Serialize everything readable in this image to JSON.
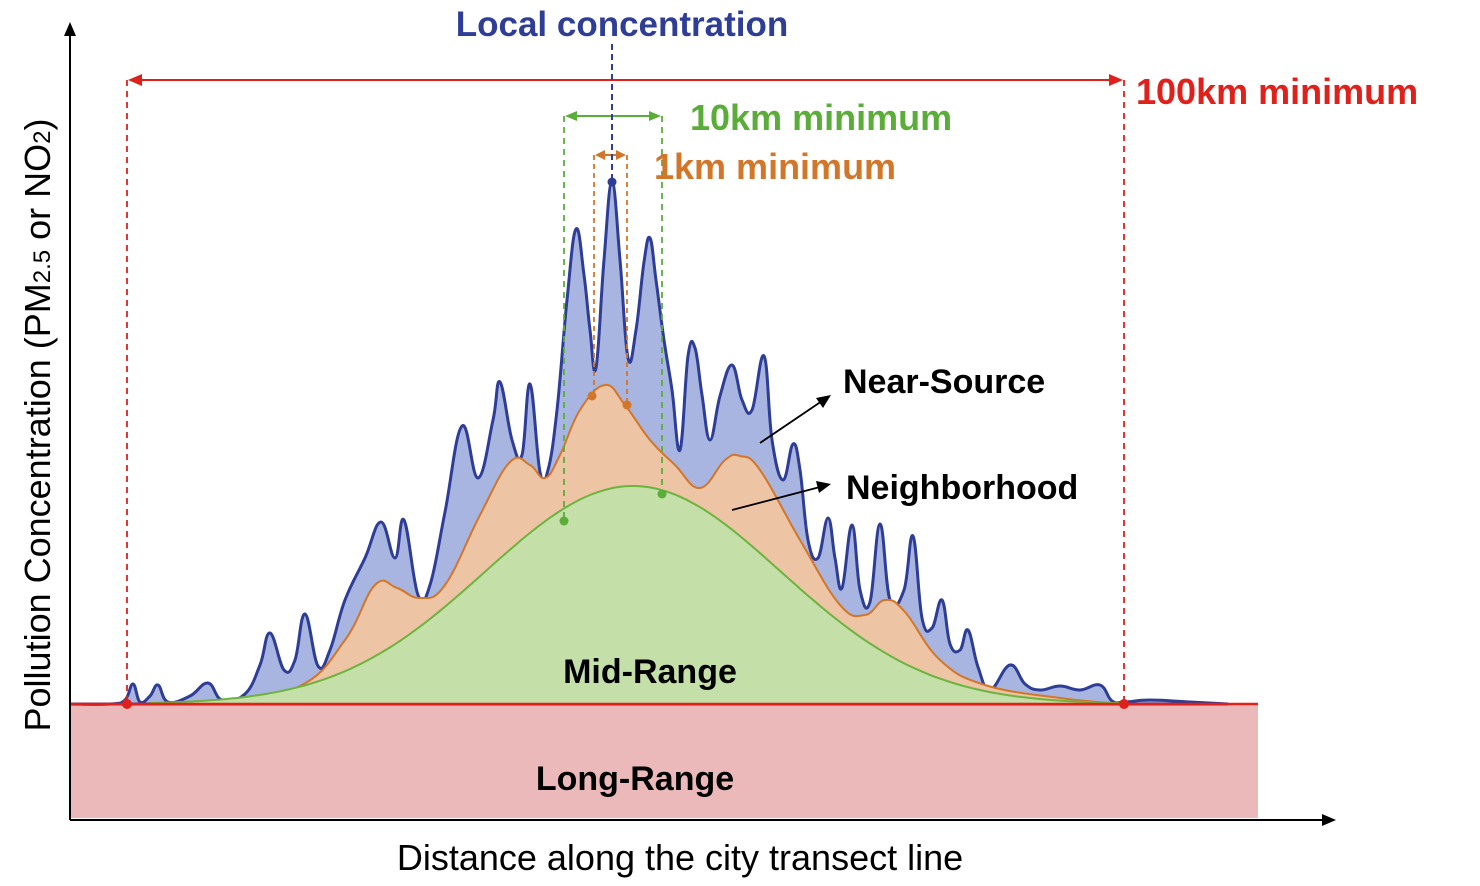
{
  "axes": {
    "y_label_prefix": "Pollution Concentration (PM",
    "y_label_sub1": "2.5",
    "y_label_mid": " or NO",
    "y_label_sub2": "2",
    "y_label_suffix": ")",
    "x_label": "Distance along the city transect line"
  },
  "labels": {
    "local": "Local concentration",
    "km100": "100km minimum",
    "km10": "10km minimum",
    "km1": "1km minimum",
    "near_source": "Near-Source",
    "neighborhood": "Neighborhood",
    "mid_range": "Mid-Range",
    "long_range": "Long-Range"
  },
  "colors": {
    "long_range_fill": "#ebb9b9",
    "long_range_line": "#e0201b",
    "mid_range_fill": "#c4dfa8",
    "mid_range_line": "#6db33f",
    "neighborhood_fill": "#edc4a4",
    "neighborhood_line": "#d2762a",
    "near_source_fill": "#a8b5e0",
    "near_source_line": "#2e3d96",
    "local_text": "#2e3d96",
    "km100_color": "#e0201b",
    "km10_color": "#5aad38",
    "km1_color": "#d2762a",
    "axis": "#000000"
  }
}
